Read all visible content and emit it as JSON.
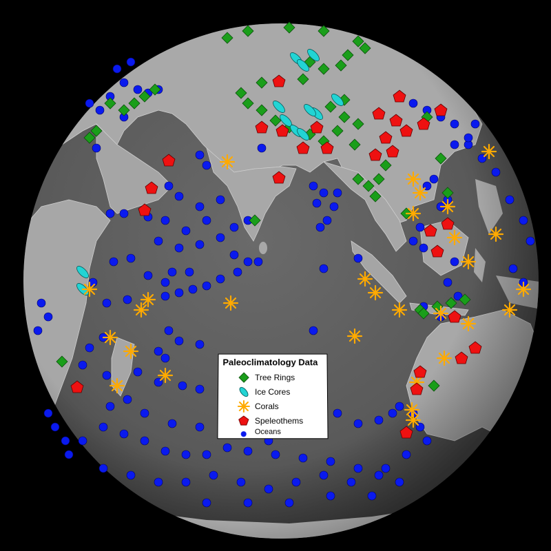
{
  "legend": {
    "title": "Paleoclimatology Data",
    "items": [
      {
        "key": "tree_rings",
        "label": "Tree Rings",
        "symbol": "green-diamond-icon",
        "color": "#1a9e1a"
      },
      {
        "key": "ice_cores",
        "label": "Ice Cores",
        "symbol": "cyan-ellipse-icon",
        "color": "#22d4d4"
      },
      {
        "key": "corals",
        "label": "Corals",
        "symbol": "orange-asterisk-icon",
        "color": "#ffaa00"
      },
      {
        "key": "speleothems",
        "label": "Speleothems",
        "symbol": "red-pentagon-icon",
        "color": "#ee1111"
      },
      {
        "key": "oceans",
        "label": "Oceans",
        "symbol": "blue-dot-icon",
        "color": "#0a1aee"
      }
    ]
  },
  "map": {
    "projection": "orthographic globe",
    "centered_on": "Indian Ocean",
    "land_color": "#a8a8a8",
    "ocean_color": "#5e5e5e",
    "background": "#000000"
  }
}
